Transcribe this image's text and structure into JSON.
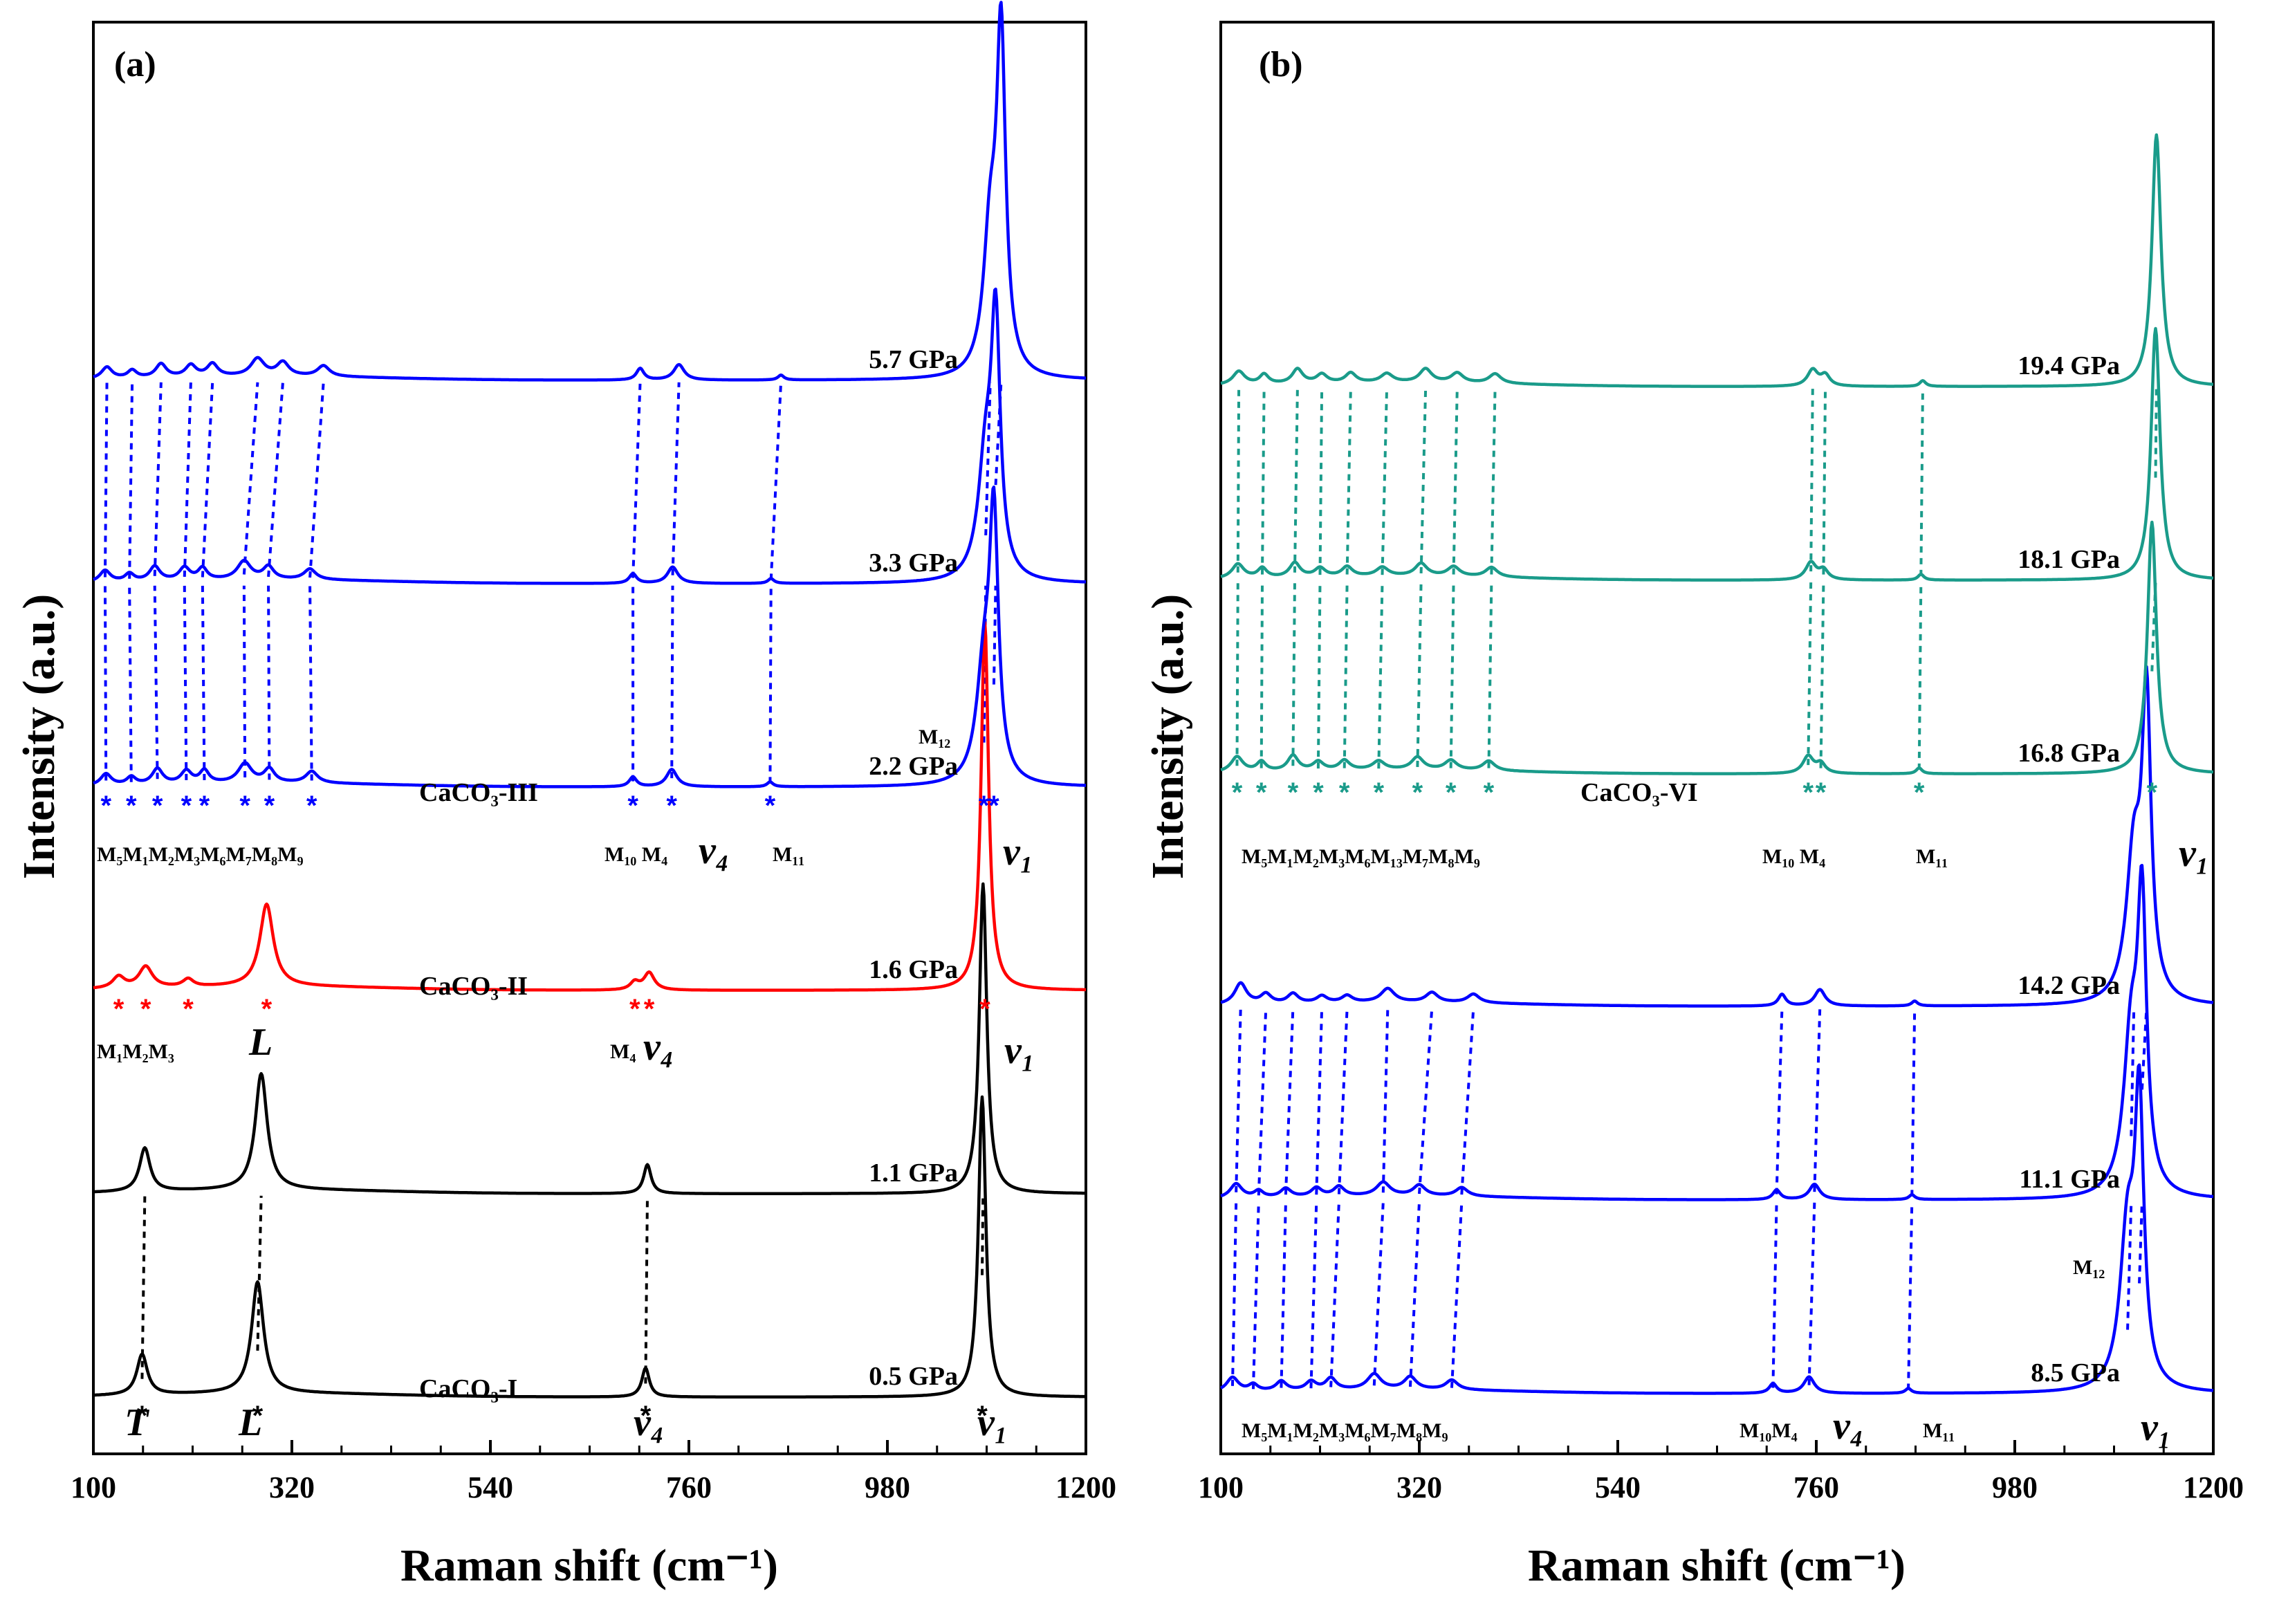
{
  "chart_data": [
    {
      "type": "line",
      "panel": "(a)",
      "xlabel": "Raman shift (cm⁻¹)",
      "ylabel": "Intensity (a.u.)",
      "xlim": [
        100,
        1200
      ],
      "xticks": [
        100,
        320,
        540,
        760,
        980,
        1200
      ],
      "series": [
        {
          "name": "0.5 GPa",
          "phase": "CaCO3-I",
          "color": "#000000",
          "offset": 0,
          "peaks": [
            [
              154,
              0.42,
              7
            ],
            [
              282,
              1.15,
              8
            ],
            [
              712,
              0.3,
              5
            ],
            [
              1085,
              3.1,
              5
            ]
          ]
        },
        {
          "name": "1.1 GPa",
          "phase": "",
          "color": "#000000",
          "offset": 2.1,
          "peaks": [
            [
              157,
              0.45,
              7
            ],
            [
              286,
              1.2,
              8
            ],
            [
              714,
              0.3,
              5
            ],
            [
              1086,
              3.2,
              5
            ]
          ]
        },
        {
          "name": "1.6 GPa",
          "phase": "CaCO3-II",
          "color": "#ff0000",
          "offset": 4.2,
          "peaks": [
            [
              128,
              0.12,
              8
            ],
            [
              158,
              0.22,
              9
            ],
            [
              205,
              0.08,
              7
            ],
            [
              292,
              0.85,
              9
            ],
            [
              700,
              0.08,
              6
            ],
            [
              716,
              0.18,
              7
            ],
            [
              1088,
              3.8,
              5
            ]
          ]
        },
        {
          "name": "2.2 GPa",
          "phase": "CaCO3-III",
          "color": "#0000ff",
          "offset": 6.3,
          "peaks": [
            [
              114,
              0.12,
              7
            ],
            [
              142,
              0.08,
              6
            ],
            [
              171,
              0.16,
              7
            ],
            [
              203,
              0.13,
              7
            ],
            [
              223,
              0.13,
              6
            ],
            [
              268,
              0.2,
              9
            ],
            [
              295,
              0.14,
              7
            ],
            [
              342,
              0.12,
              8
            ],
            [
              698,
              0.1,
              5
            ],
            [
              741,
              0.18,
              7
            ],
            [
              850,
              0.05,
              4
            ],
            [
              1087,
              1.1,
              10
            ],
            [
              1098,
              2.6,
              6
            ]
          ]
        },
        {
          "name": "3.3 GPa",
          "phase": "",
          "color": "#0000ff",
          "offset": 8.4,
          "peaks": [
            [
              113,
              0.12,
              7
            ],
            [
              140,
              0.08,
              6
            ],
            [
              168,
              0.15,
              7
            ],
            [
              201,
              0.13,
              7
            ],
            [
              221,
              0.12,
              6
            ],
            [
              267,
              0.19,
              9
            ],
            [
              294,
              0.13,
              7
            ],
            [
              340,
              0.11,
              8
            ],
            [
              698,
              0.1,
              5
            ],
            [
              742,
              0.17,
              7
            ],
            [
              851,
              0.05,
              4
            ],
            [
              1089,
              1.2,
              10
            ],
            [
              1100,
              2.5,
              6
            ]
          ]
        },
        {
          "name": "5.7 GPa",
          "phase": "",
          "color": "#0000ff",
          "offset": 10.5,
          "peaks": [
            [
              115,
              0.12,
              7
            ],
            [
              143,
              0.08,
              6
            ],
            [
              175,
              0.14,
              7
            ],
            [
              208,
              0.12,
              7
            ],
            [
              232,
              0.13,
              7
            ],
            [
              282,
              0.18,
              9
            ],
            [
              310,
              0.14,
              8
            ],
            [
              355,
              0.11,
              8
            ],
            [
              706,
              0.12,
              5
            ],
            [
              749,
              0.16,
              7
            ],
            [
              862,
              0.05,
              4
            ],
            [
              1094,
              1.4,
              9
            ],
            [
              1106,
              3.4,
              6
            ]
          ]
        }
      ]
    },
    {
      "type": "line",
      "panel": "(b)",
      "xlabel": "Raman shift (cm⁻¹)",
      "ylabel": "Intensity (a.u.)",
      "xlim": [
        100,
        1200
      ],
      "xticks": [
        100,
        320,
        540,
        760,
        980,
        1200
      ],
      "series": [
        {
          "name": "8.5 GPa",
          "phase": "",
          "color": "#0000ff",
          "offset": 0,
          "peaks": [
            [
              113,
              0.15,
              8
            ],
            [
              136,
              0.07,
              6
            ],
            [
              167,
              0.1,
              7
            ],
            [
              200,
              0.09,
              7
            ],
            [
              222,
              0.12,
              7
            ],
            [
              270,
              0.16,
              9
            ],
            [
              310,
              0.13,
              8
            ],
            [
              356,
              0.1,
              8
            ],
            [
              712,
              0.1,
              5
            ],
            [
              752,
              0.17,
              7
            ],
            [
              862,
              0.05,
              4
            ],
            [
              1105,
              1.6,
              10
            ],
            [
              1118,
              2.8,
              6
            ]
          ]
        },
        {
          "name": "11.1 GPa",
          "phase": "",
          "color": "#0000ff",
          "offset": 2.0,
          "peaks": [
            [
              117,
              0.15,
              8
            ],
            [
              142,
              0.07,
              6
            ],
            [
              172,
              0.09,
              7
            ],
            [
              206,
              0.09,
              7
            ],
            [
              231,
              0.1,
              7
            ],
            [
              280,
              0.14,
              9
            ],
            [
              320,
              0.11,
              8
            ],
            [
              367,
              0.09,
              8
            ],
            [
              716,
              0.1,
              5
            ],
            [
              758,
              0.16,
              7
            ],
            [
              866,
              0.05,
              4
            ],
            [
              1109,
              1.6,
              10
            ],
            [
              1121,
              2.8,
              6
            ]
          ]
        },
        {
          "name": "14.2 GPa",
          "phase": "",
          "color": "#0000ff",
          "offset": 4.0,
          "peaks": [
            [
              122,
              0.22,
              8
            ],
            [
              150,
              0.1,
              7
            ],
            [
              180,
              0.1,
              7
            ],
            [
              212,
              0.07,
              7
            ],
            [
              240,
              0.07,
              7
            ],
            [
              285,
              0.14,
              9
            ],
            [
              334,
              0.1,
              8
            ],
            [
              380,
              0.09,
              8
            ],
            [
              722,
              0.12,
              5
            ],
            [
              764,
              0.17,
              7
            ],
            [
              869,
              0.05,
              4
            ],
            [
              1112,
              1.5,
              10
            ],
            [
              1126,
              3.0,
              6
            ]
          ]
        },
        {
          "name": "16.8 GPa",
          "phase": "CaCO3-VI",
          "color": "#1a9b8a",
          "offset": 6.4,
          "peaks": [
            [
              118,
              0.16,
              8
            ],
            [
              145,
              0.1,
              6
            ],
            [
              180,
              0.16,
              7
            ],
            [
              208,
              0.09,
              7
            ],
            [
              237,
              0.1,
              7
            ],
            [
              275,
              0.09,
              8
            ],
            [
              318,
              0.13,
              8
            ],
            [
              355,
              0.1,
              8
            ],
            [
              397,
              0.1,
              8
            ],
            [
              751,
              0.18,
              7
            ],
            [
              765,
              0.1,
              6
            ],
            [
              874,
              0.06,
              4
            ],
            [
              1132,
              2.6,
              6
            ]
          ]
        },
        {
          "name": "18.1 GPa",
          "phase": "",
          "color": "#1a9b8a",
          "offset": 8.4,
          "peaks": [
            [
              119,
              0.15,
              8
            ],
            [
              146,
              0.1,
              6
            ],
            [
              182,
              0.15,
              7
            ],
            [
              210,
              0.09,
              7
            ],
            [
              240,
              0.1,
              7
            ],
            [
              279,
              0.09,
              8
            ],
            [
              322,
              0.13,
              8
            ],
            [
              358,
              0.1,
              8
            ],
            [
              400,
              0.1,
              8
            ],
            [
              754,
              0.18,
              7
            ],
            [
              768,
              0.1,
              6
            ],
            [
              876,
              0.06,
              4
            ],
            [
              1136,
              2.6,
              6
            ]
          ]
        },
        {
          "name": "19.4 GPa",
          "phase": "",
          "color": "#1a9b8a",
          "offset": 10.4,
          "peaks": [
            [
              120,
              0.14,
              8
            ],
            [
              148,
              0.1,
              6
            ],
            [
              185,
              0.15,
              7
            ],
            [
              212,
              0.09,
              7
            ],
            [
              244,
              0.1,
              7
            ],
            [
              284,
              0.09,
              8
            ],
            [
              327,
              0.14,
              8
            ],
            [
              362,
              0.1,
              8
            ],
            [
              404,
              0.1,
              8
            ],
            [
              756,
              0.17,
              7
            ],
            [
              770,
              0.11,
              6
            ],
            [
              878,
              0.06,
              4
            ],
            [
              1137,
              2.6,
              6
            ]
          ]
        }
      ]
    }
  ],
  "labels": {
    "panel_a": {
      "phase_I": "CaCO₃-I",
      "phase_II": "CaCO₃-II",
      "phase_III": "CaCO₃-III",
      "T": "T",
      "L1": "L",
      "L2": "L",
      "v4_i": "v₄",
      "v1_i": "v₁",
      "v1_ii": "v₁",
      "v1_iii": "v₁",
      "modes_II": "M₁M₂M₃",
      "modes_II_right": "M₄",
      "v4_ii": "v₄",
      "modes_III": "M₅M₁M₂M₃M₆M₇M₈M₉",
      "modes_III_mid": "M₁₀ M₄",
      "v4_iii": "v₄",
      "m11": "M₁₁",
      "m12": "M₁₂"
    },
    "panel_b": {
      "phase_VI": "CaCO₃-VI",
      "modes_VI": "M₅M₁M₂M₃M₆M₁₃M₇M₈M₉",
      "modes_VI_mid": "M₁₀ M₄",
      "m11_vi": "M₁₁",
      "v1_vi": "v₁",
      "modes_lo": "M₅M₁M₂M₃M₆M₇M₈M₉",
      "modes_lo_mid": "M₁₀M₄",
      "v4_lo": "v₄",
      "m11_lo": "M₁₁",
      "v1_lo": "v₁",
      "m12_b": "M₁₂"
    },
    "star": "*"
  }
}
